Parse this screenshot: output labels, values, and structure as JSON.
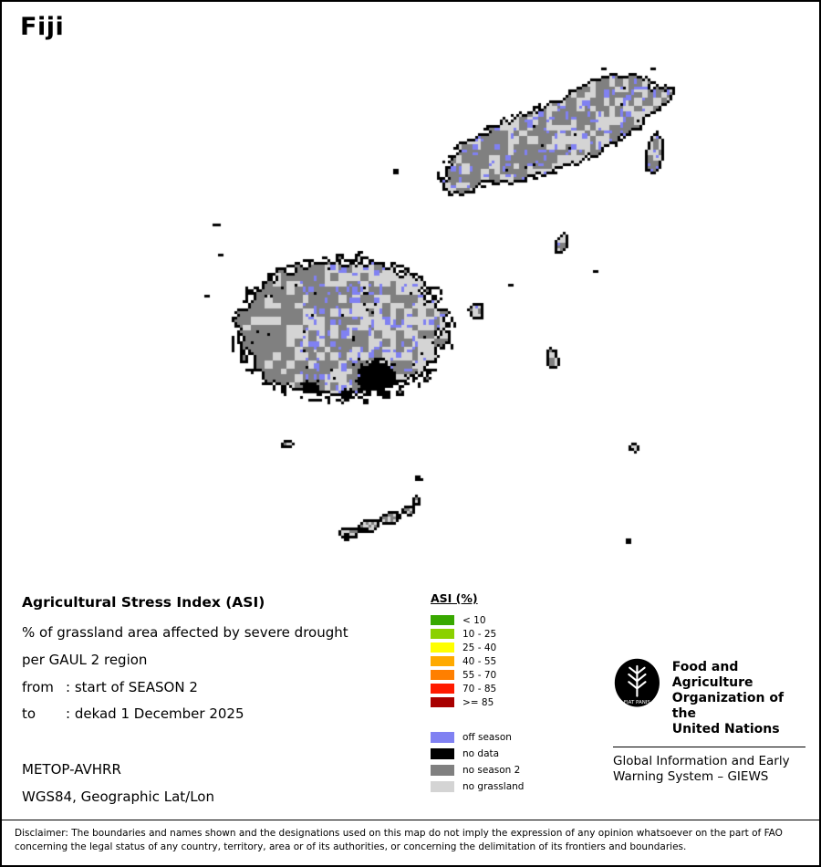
{
  "title": "Fiji",
  "legend_block": {
    "heading": "Agricultural Stress Index (ASI)",
    "line1": "% of grassland area affected by severe drought",
    "line2": "per GAUL 2 region",
    "from_label": "from",
    "from_value": ": start of SEASON 2",
    "to_label": "to",
    "to_value": ": dekad 1 December 2025",
    "sensor": "METOP-AVHRR",
    "projection": "WGS84, Geographic Lat/Lon"
  },
  "asi_legend": {
    "title": "ASI (%)",
    "classes": [
      {
        "label": "< 10",
        "color": "#38a800"
      },
      {
        "label": "10 - 25",
        "color": "#8bd100"
      },
      {
        "label": "25 - 40",
        "color": "#ffff00"
      },
      {
        "label": "40 - 55",
        "color": "#ffaa00"
      },
      {
        "label": "55 - 70",
        "color": "#ff7f00"
      },
      {
        "label": "70 - 85",
        "color": "#ff1a00"
      },
      {
        "label": ">= 85",
        "color": "#a80000"
      }
    ],
    "categories": [
      {
        "label": "off season",
        "color": "#8081f2"
      },
      {
        "label": "no data",
        "color": "#000000"
      },
      {
        "label": "no season 2",
        "color": "#808080"
      },
      {
        "label": "no grassland",
        "color": "#d4d4d4"
      }
    ]
  },
  "footer": {
    "fao_lines": [
      "Food and Agriculture",
      "Organization of the",
      "United Nations"
    ],
    "fao_motto": "FIAT PANIS",
    "giews_lines": [
      "Global Information and Early",
      "Warning System – GIEWS"
    ]
  },
  "disclaimer": {
    "line1": "Disclaimer: The boundaries and names shown and the designations used on this map do not imply the expression of any opinion whatsoever on the part of FAO",
    "line2": "concerning the legal status of any country, territory, area or of its authorities, or concerning the delimitation of its frontiers and boundaries."
  },
  "map_colors": {
    "sea": "#ffffff",
    "outline": "#000000",
    "off_season": "#8081f2",
    "no_data": "#000000",
    "no_season2": "#808080",
    "no_grassland": "#d4d4d4"
  }
}
